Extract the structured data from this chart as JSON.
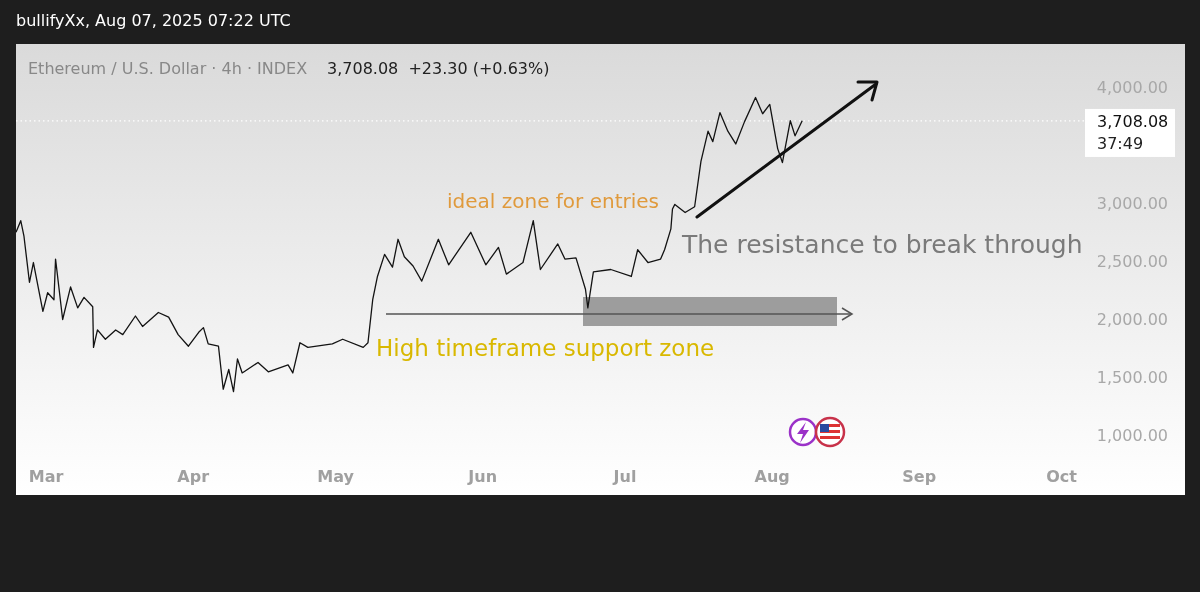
{
  "chart_data": {
    "type": "line",
    "title": "Ethereum / U.S. Dollar · 4h · INDEX",
    "subtitle": "3,708.08  +23.30 (+0.63%)",
    "annotations": [
      "bullifyXx, Aug 07, 2025 07:22 UTC",
      "ideal zone for entries",
      "The resistance to break through",
      "High timeframe support zone",
      "37:49"
    ],
    "x": [
      "2025-02-22T16:00",
      "2025-02-23T16:00",
      "2025-02-24T08:00",
      "2025-02-25T12:00",
      "2025-02-26T08:00",
      "2025-02-28T08:00",
      "2025-03-01T08:00",
      "2025-03-02T16:00",
      "2025-03-03T00:00",
      "2025-03-04T12:00",
      "2025-03-06T04:00",
      "2025-03-07T16:00",
      "2025-03-09T00:00",
      "2025-03-10T20:00",
      "2025-03-11T00:00",
      "2025-03-11T20:00",
      "2025-03-13T12:00",
      "2025-03-15T16:00",
      "2025-03-17T04:00",
      "2025-03-19T20:00",
      "2025-03-21T08:00",
      "2025-03-24T16:00",
      "2025-03-26T20:00",
      "2025-03-28T20:00",
      "2025-03-31T00:00",
      "2025-04-02T04:00",
      "2025-04-03T04:00",
      "2025-04-04T04:00",
      "2025-04-06T08:00",
      "2025-04-07T08:00",
      "2025-04-08T12:00",
      "2025-04-09T12:00",
      "2025-04-10T08:00",
      "2025-04-11T08:00",
      "2025-04-14T16:00",
      "2025-04-16T20:00",
      "2025-04-21T00:00",
      "2025-04-22T00:00",
      "2025-04-23T12:00",
      "2025-04-25T04:00",
      "2025-04-30T08:00",
      "2025-05-02T12:00",
      "2025-05-06T20:00",
      "2025-05-07T20:00",
      "2025-05-08T20:00",
      "2025-05-09T20:00",
      "2025-05-11T08:00",
      "2025-05-13T00:00",
      "2025-05-14T04:00",
      "2025-05-15T12:00",
      "2025-05-17T08:00",
      "2025-05-19T04:00",
      "2025-05-22T16:00",
      "2025-05-24T20:00",
      "2025-05-29T12:00",
      "2025-06-01T16:00",
      "2025-06-04T08:00",
      "2025-06-06T00:00",
      "2025-06-09T12:00",
      "2025-06-11T16:00",
      "2025-06-13T04:00",
      "2025-06-16T20:00",
      "2025-06-18T08:00",
      "2025-06-20T16:00",
      "2025-06-22T16:00",
      "2025-06-23T04:00",
      "2025-06-24T08:00",
      "2025-06-28T00:00",
      "2025-07-02T08:00",
      "2025-07-03T16:00",
      "2025-07-05T20:00",
      "2025-07-08T12:00",
      "2025-07-09T08:00",
      "2025-07-10T16:00",
      "2025-07-11T00:00",
      "2025-07-11T12:00",
      "2025-07-13T16:00",
      "2025-07-15T16:00",
      "2025-07-17T00:00",
      "2025-07-18T12:00",
      "2025-07-19T12:00",
      "2025-07-21T00:00",
      "2025-07-22T16:00",
      "2025-07-24T08:00",
      "2025-07-26T04:00",
      "2025-07-28T12:00",
      "2025-07-30T00:00",
      "2025-07-31T12:00",
      "2025-08-02T04:00",
      "2025-08-03T04:00",
      "2025-08-04T20:00",
      "2025-08-05T20:00",
      "2025-08-07T08:00"
    ],
    "series": [
      {
        "color": "#131313",
        "values": [
          2750,
          2850,
          2720,
          2320,
          2490,
          2070,
          2230,
          2170,
          2520,
          2000,
          2280,
          2100,
          2190,
          2110,
          1760,
          1910,
          1830,
          1910,
          1870,
          2030,
          1940,
          2060,
          2020,
          1870,
          1770,
          1890,
          1930,
          1790,
          1770,
          1400,
          1570,
          1380,
          1660,
          1540,
          1630,
          1550,
          1610,
          1540,
          1800,
          1760,
          1790,
          1830,
          1760,
          1800,
          2170,
          2370,
          2560,
          2450,
          2690,
          2540,
          2460,
          2330,
          2690,
          2470,
          2750,
          2470,
          2620,
          2390,
          2490,
          2850,
          2430,
          2650,
          2520,
          2530,
          2260,
          2100,
          2410,
          2430,
          2370,
          2600,
          2490,
          2520,
          2600,
          2780,
          2950,
          2990,
          2920,
          2970,
          3360,
          3620,
          3530,
          3780,
          3620,
          3510,
          3700,
          3910,
          3770,
          3850,
          3470,
          3350,
          3710,
          3580,
          3710
        ]
      }
    ],
    "xlim": [
      "2025-02-22T16:00",
      "2025-10-27"
    ],
    "xticks": [
      {
        "value": "2025-03-01",
        "label": "Mar"
      },
      {
        "value": "2025-04-01",
        "label": "Apr"
      },
      {
        "value": "2025-05-01",
        "label": "May"
      },
      {
        "value": "2025-06-01",
        "label": "Jun"
      },
      {
        "value": "2025-07-01",
        "label": "Jul"
      },
      {
        "value": "2025-08-01",
        "label": "Aug"
      },
      {
        "value": "2025-09-01",
        "label": "Sep"
      },
      {
        "value": "2025-10-01",
        "label": "Oct"
      }
    ],
    "ylim": [
      490,
      4370
    ],
    "yticks": [
      {
        "value": 1000,
        "label": "1,000.00"
      },
      {
        "value": 1500,
        "label": "1,500.00"
      },
      {
        "value": 2000,
        "label": "2,000.00"
      },
      {
        "value": 2500,
        "label": "2,500.00"
      },
      {
        "value": 3000,
        "label": "3,000.00"
      },
      {
        "value": 4000,
        "label": "4,000.00"
      }
    ],
    "ref_lines": [
      {
        "axis": "y",
        "value": 3708.08,
        "label": "3,708.08",
        "line_style": "dotted",
        "color": "#ffffff"
      }
    ],
    "grid": false,
    "marker": "none",
    "line_style": "solid"
  }
}
